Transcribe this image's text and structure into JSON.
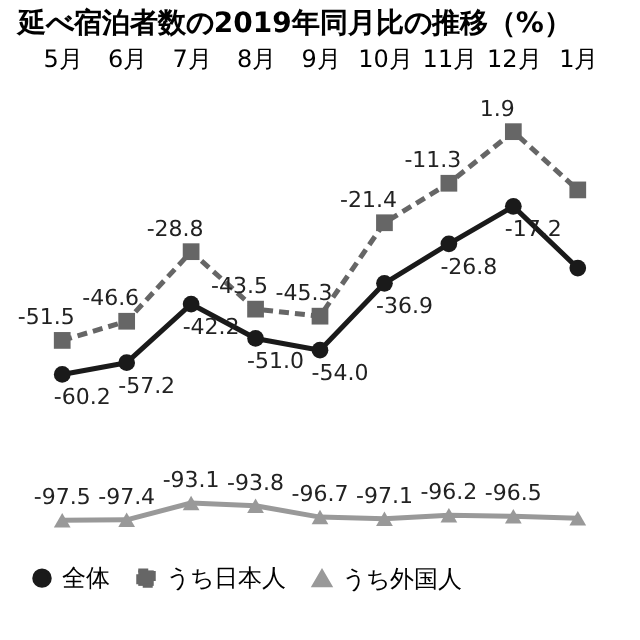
{
  "chart_data": {
    "type": "line",
    "title": "延べ宿泊者数の2019年同月比の推移（%）",
    "categories": [
      "5月",
      "6月",
      "7月",
      "8月",
      "9月",
      "10月",
      "11月",
      "12月",
      "1月"
    ],
    "tick_labels": "x",
    "grid": false,
    "legend": "bottom",
    "series": [
      {
        "name": "全体",
        "color": "#1a1a1a",
        "marker": "circle",
        "line_style": "solid",
        "values": [
          -60.2,
          -57.2,
          -42.2,
          -51.0,
          -54.0,
          -36.9,
          -26.8,
          -17.2,
          -33
        ],
        "value_labels": [
          "-60.2",
          "-57.2",
          "-42.2",
          "-51.0",
          "-54.0",
          "-36.9",
          "-26.8",
          "-17.2",
          null
        ]
      },
      {
        "name": "うち日本人",
        "color": "#666666",
        "marker": "square",
        "line_style": "dashed",
        "values": [
          -51.5,
          -46.6,
          -28.8,
          -43.5,
          -45.3,
          -21.4,
          -11.3,
          1.9,
          -13
        ],
        "value_labels": [
          "-51.5",
          "-46.6",
          "-28.8",
          "-43.5",
          "-45.3",
          "-21.4",
          "-11.3",
          "1.9",
          null
        ]
      },
      {
        "name": "うち外国人",
        "color": "#999999",
        "marker": "triangle",
        "line_style": "solid",
        "values": [
          -97.5,
          -97.4,
          -93.1,
          -93.8,
          -96.7,
          -97.1,
          -96.2,
          -96.5,
          -97
        ],
        "value_labels": [
          "-97.5",
          "-97.4",
          "-93.1",
          "-93.8",
          "-96.7",
          "-97.1",
          "-96.2",
          "-96.5",
          null
        ]
      }
    ]
  }
}
